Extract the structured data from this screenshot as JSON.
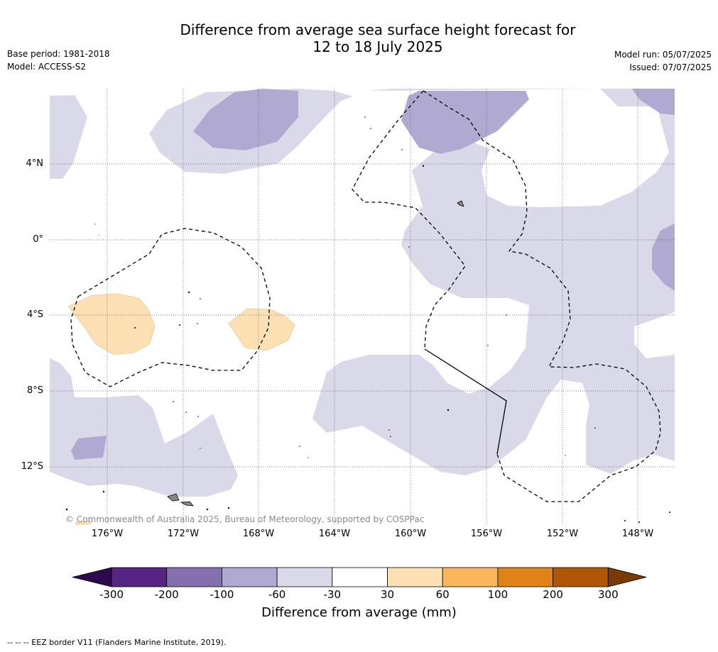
{
  "title_line1": "Difference from average sea surface height forecast for",
  "title_line2": "12 to 18 July 2025",
  "base_period": "Base period: 1981-2018",
  "model": "Model: ACCESS-S2",
  "model_run": "Model run: 05/07/2025",
  "issued": "Issued: 07/07/2025",
  "lat_labels": [
    "4°N",
    "0°",
    "4°S",
    "8°S",
    "12°S"
  ],
  "lon_labels": [
    "176°W",
    "172°W",
    "168°W",
    "164°W",
    "160°W",
    "156°W",
    "152°W",
    "148°W"
  ],
  "credit": "© Commonwealth of Australia 2025, Bureau of Meteorology, supported by COSPPac",
  "legend": {
    "ticks": [
      "-300",
      "-200",
      "-100",
      "-60",
      "-30",
      "30",
      "60",
      "100",
      "200",
      "300"
    ],
    "colors": [
      "#2d0a4e",
      "#562483",
      "#8470ad",
      "#b0a9d1",
      "#d9d9ea",
      "#ffffff",
      "#fde0b4",
      "#f9b65d",
      "#e0821a",
      "#b05607",
      "#7a3a05"
    ],
    "title": "Difference from average (mm)"
  },
  "footnote": "--  --  -- EEZ border V11 (Flanders Marine Institute, 2019)."
}
